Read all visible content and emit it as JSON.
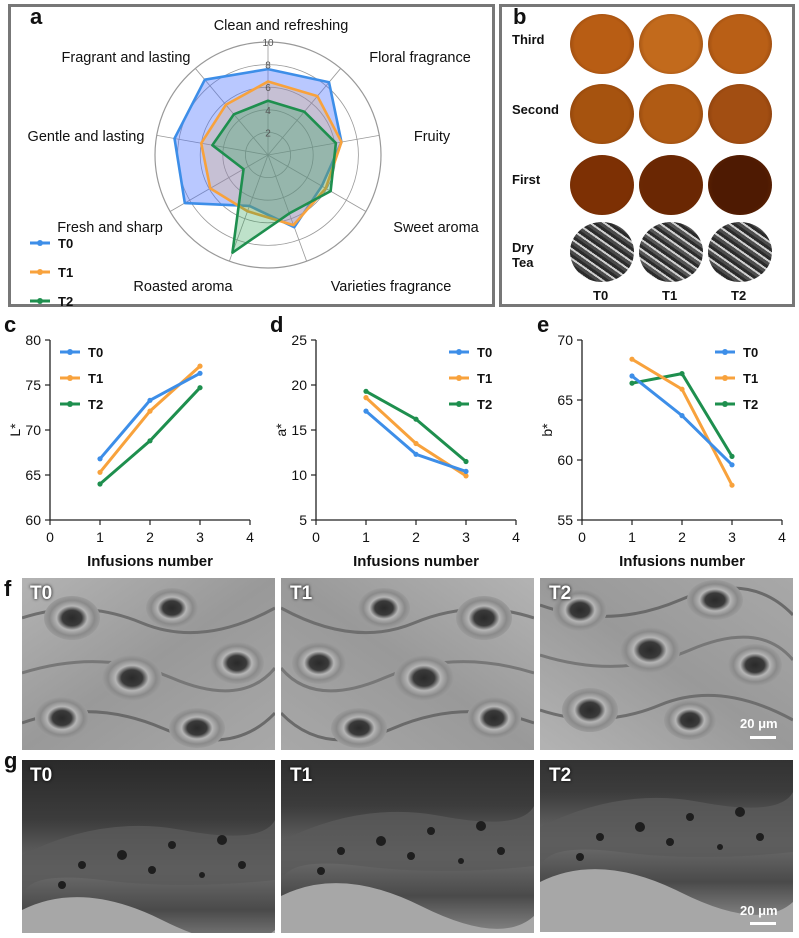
{
  "panels": {
    "a": "a",
    "b": "b",
    "c": "c",
    "d": "d",
    "e": "e",
    "f": "f",
    "g": "g"
  },
  "colors": {
    "T0": "#3d8ee8",
    "T1": "#f8a23c",
    "T2": "#1e8f4e"
  },
  "chart_data": [
    {
      "type": "radar",
      "panel": "a",
      "axes": [
        "Clean and refreshing",
        "Floral fragrance",
        "Fruity",
        "Sweet aroma",
        "Varieties fragrance",
        "Roasted aroma",
        "Fresh and sharp",
        "Gentle and lasting",
        "Fragrant and lasting"
      ],
      "axis_ticks": [
        "2",
        "4",
        "6",
        "8",
        "10"
      ],
      "rmax": 10,
      "series": [
        {
          "name": "T0",
          "values": [
            7.6,
            8.4,
            6.6,
            5.5,
            6.8,
            4.8,
            8.5,
            8.4,
            8.7
          ]
        },
        {
          "name": "T1",
          "values": [
            6.5,
            6.8,
            6.6,
            5.9,
            6.6,
            5.3,
            5.9,
            6.0,
            5.8
          ]
        },
        {
          "name": "T2",
          "values": [
            4.8,
            5.0,
            6.1,
            6.4,
            5.5,
            9.2,
            2.5,
            5.0,
            4.7
          ]
        }
      ],
      "legend": [
        "T0",
        "T1",
        "T2"
      ]
    },
    {
      "type": "line",
      "panel": "c",
      "ylabel": "L*",
      "xlabel": "Infusions number",
      "xlim": [
        0,
        4
      ],
      "ylim": [
        60,
        80
      ],
      "xticks": [
        "0",
        "1",
        "2",
        "3",
        "4"
      ],
      "yticks": [
        "60",
        "65",
        "70",
        "75",
        "80"
      ],
      "x": [
        1,
        2,
        3
      ],
      "series": [
        {
          "name": "T0",
          "values": [
            66.8,
            73.3,
            76.3
          ]
        },
        {
          "name": "T1",
          "values": [
            65.3,
            72.1,
            77.1
          ]
        },
        {
          "name": "T2",
          "values": [
            64.0,
            68.8,
            74.7
          ]
        }
      ],
      "legend_pos": "top-left"
    },
    {
      "type": "line",
      "panel": "d",
      "ylabel": "a*",
      "xlabel": "Infusions number",
      "xlim": [
        0,
        4
      ],
      "ylim": [
        5,
        25
      ],
      "xticks": [
        "0",
        "1",
        "2",
        "3",
        "4"
      ],
      "yticks": [
        "5",
        "10",
        "15",
        "20",
        "25"
      ],
      "x": [
        1,
        2,
        3
      ],
      "series": [
        {
          "name": "T0",
          "values": [
            17.1,
            12.3,
            10.4
          ]
        },
        {
          "name": "T1",
          "values": [
            18.6,
            13.5,
            9.9
          ]
        },
        {
          "name": "T2",
          "values": [
            19.3,
            16.2,
            11.5
          ]
        }
      ],
      "legend_pos": "top-right"
    },
    {
      "type": "line",
      "panel": "e",
      "ylabel": "b*",
      "xlabel": "Infusions number",
      "xlim": [
        0,
        4
      ],
      "ylim": [
        55,
        70
      ],
      "xticks": [
        "0",
        "1",
        "2",
        "3",
        "4"
      ],
      "yticks": [
        "55",
        "60",
        "65",
        "70"
      ],
      "x": [
        1,
        2,
        3
      ],
      "series": [
        {
          "name": "T0",
          "values": [
            67.0,
            63.7,
            59.6
          ]
        },
        {
          "name": "T1",
          "values": [
            68.4,
            65.9,
            57.9
          ]
        },
        {
          "name": "T2",
          "values": [
            66.4,
            67.2,
            60.3
          ]
        }
      ],
      "legend_pos": "top-right"
    }
  ],
  "photo_panel": {
    "rows": [
      "Third",
      "Second",
      "First",
      "Dry Tea"
    ],
    "columns": [
      "T0",
      "T1",
      "T2"
    ]
  },
  "sem_surface": {
    "labels": [
      "T0",
      "T1",
      "T2"
    ],
    "scale": "20 μm"
  },
  "sem_cross": {
    "labels": [
      "T0",
      "T1",
      "T2"
    ],
    "scale": "20 μm"
  }
}
